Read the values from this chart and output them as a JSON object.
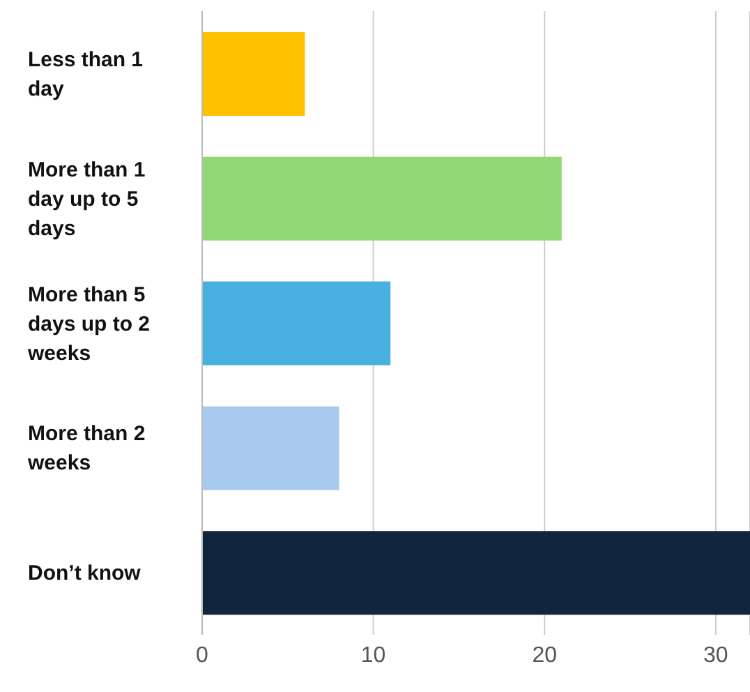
{
  "chart_data": {
    "type": "bar",
    "orientation": "horizontal",
    "categories": [
      "Less than 1 day",
      "More than 1 day up to 5 days",
      "More than 5 days up to 2 weeks",
      "More than 2 weeks",
      "Don’t know"
    ],
    "values": [
      6,
      21,
      11,
      8,
      32
    ],
    "colors": [
      "#ffc000",
      "#8fd873",
      "#47b0e0",
      "#a8caee",
      "#10263f"
    ],
    "xlim": [
      0,
      32
    ],
    "xticks": [
      0,
      10,
      20,
      30
    ],
    "grid": "x"
  }
}
